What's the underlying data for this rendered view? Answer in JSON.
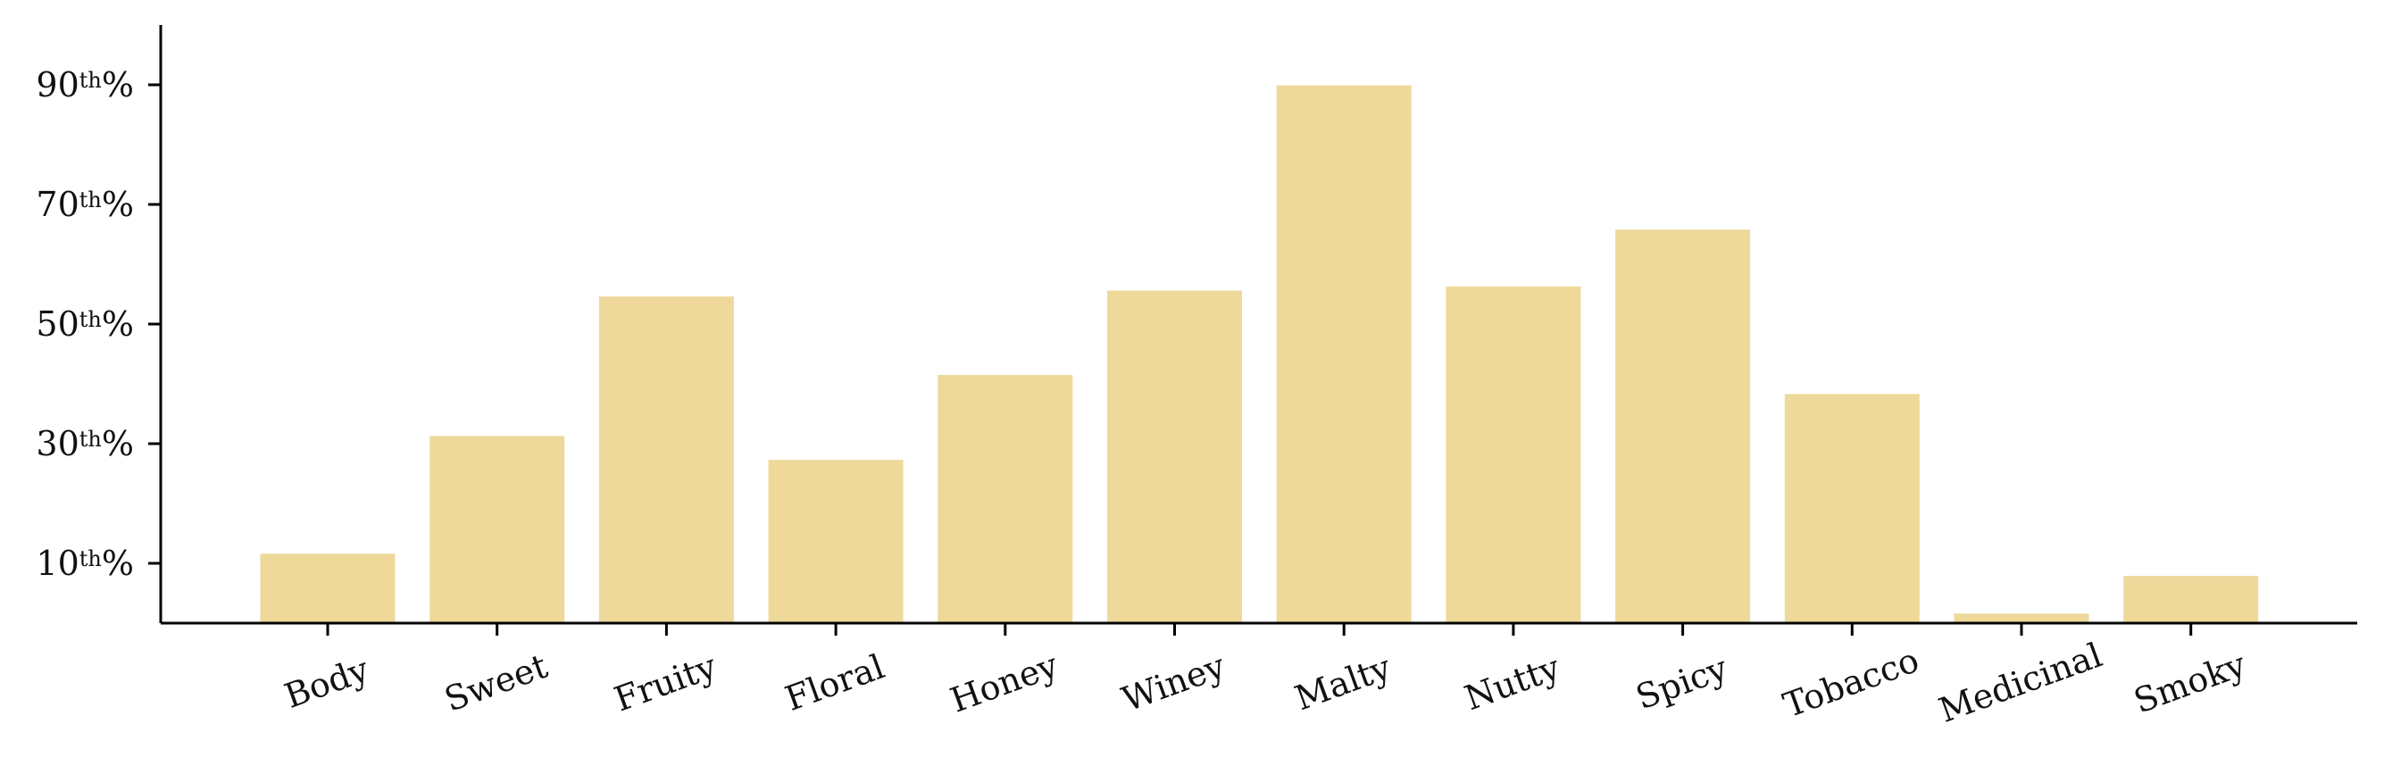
{
  "chart_data": {
    "type": "bar",
    "title": "",
    "xlabel": "",
    "ylabel": "",
    "categories": [
      "Body",
      "Sweet",
      "Fruity",
      "Floral",
      "Honey",
      "Winey",
      "Malty",
      "Nutty",
      "Spicy",
      "Tobacco",
      "Medicinal",
      "Smoky"
    ],
    "values": [
      11.6,
      31.3,
      54.6,
      27.3,
      41.5,
      55.6,
      89.9,
      56.3,
      65.8,
      38.3,
      1.6,
      7.9
    ],
    "ylim": [
      0,
      100
    ],
    "yticks": [
      {
        "value": 10,
        "num": "10",
        "sup": "th",
        "suffix": "%"
      },
      {
        "value": 30,
        "num": "30",
        "sup": "th",
        "suffix": "%"
      },
      {
        "value": 50,
        "num": "50",
        "sup": "th",
        "suffix": "%"
      },
      {
        "value": 70,
        "num": "70",
        "sup": "th",
        "suffix": "%"
      },
      {
        "value": 90,
        "num": "90",
        "sup": "th",
        "suffix": "%"
      }
    ],
    "bar_color": "#eed99b",
    "axis_color": "#000000",
    "grid": false,
    "legend": "none"
  }
}
